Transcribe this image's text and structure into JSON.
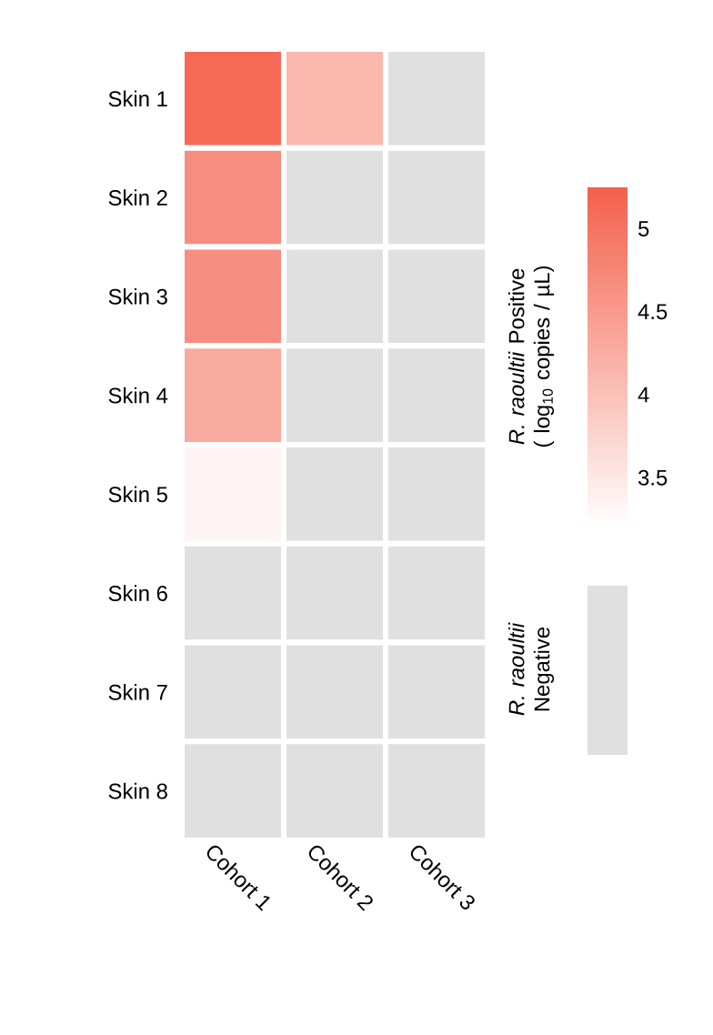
{
  "chart_data": {
    "type": "heatmap",
    "categories": [
      "Cohort 1",
      "Cohort 2",
      "Cohort 3"
    ],
    "y_categories": [
      "Skin 1",
      "Skin 2",
      "Skin 3",
      "Skin 4",
      "Skin 5",
      "Skin 6",
      "Skin 7",
      "Skin 8"
    ],
    "cells": [
      [
        5.12,
        4.12,
        null
      ],
      [
        4.67,
        null,
        null
      ],
      [
        4.65,
        null,
        null
      ],
      [
        4.29,
        null,
        null
      ],
      [
        3.34,
        null,
        null
      ],
      [
        null,
        null,
        null
      ],
      [
        null,
        null,
        null
      ],
      [
        null,
        null,
        null
      ]
    ],
    "clim": [
      3.2,
      5.25
    ],
    "cticks": [
      3.5,
      4,
      4.5,
      5
    ],
    "clabel": "*R. raoultii* Positive ( log$_{10}$ copies / µL)",
    "annotations": [
      "*R. raoultii* Negative"
    ]
  }
}
